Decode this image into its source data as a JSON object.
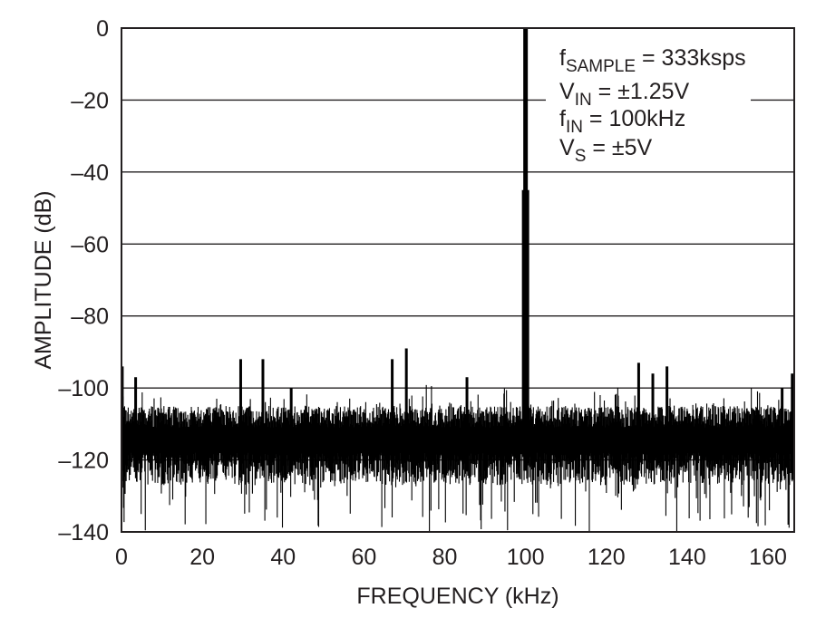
{
  "chart_data": {
    "type": "line",
    "title": "",
    "xlabel": "FREQUENCY (kHz)",
    "ylabel": "AMPLITUDE (dB)",
    "xlim": [
      0,
      166.5
    ],
    "ylim": [
      -140,
      0
    ],
    "xticks": [
      0,
      20,
      40,
      60,
      80,
      100,
      120,
      140,
      160
    ],
    "yticks": [
      0,
      -20,
      -40,
      -60,
      -80,
      -100,
      -120,
      -140
    ],
    "xtick_labels": [
      "0",
      "20",
      "40",
      "60",
      "80",
      "100",
      "120",
      "140",
      "160"
    ],
    "ytick_labels": [
      "0",
      "–20",
      "–40",
      "–60",
      "–80",
      "–100",
      "–120",
      "–140"
    ],
    "grid": "horizontal",
    "noise_floor_db": -113,
    "series": [
      {
        "color": "#000000",
        "peaks": [
          {
            "x": 0.2,
            "y": -94
          },
          {
            "x": 3.5,
            "y": -97
          },
          {
            "x": 29.5,
            "y": -92
          },
          {
            "x": 35,
            "y": -92
          },
          {
            "x": 42,
            "y": -100
          },
          {
            "x": 67,
            "y": -92
          },
          {
            "x": 70.5,
            "y": -89
          },
          {
            "x": 85.5,
            "y": -97
          },
          {
            "x": 100,
            "y": 0
          },
          {
            "x": 128,
            "y": -93
          },
          {
            "x": 131.5,
            "y": -96
          },
          {
            "x": 135,
            "y": -94
          },
          {
            "x": 163.5,
            "y": -100
          },
          {
            "x": 166,
            "y": -96
          }
        ]
      }
    ],
    "annotations": [
      {
        "main": "f",
        "sub": "SAMPLE",
        "rest": " = 333ksps"
      },
      {
        "main": "V",
        "sub": "IN",
        "rest": " = ±1.25V"
      },
      {
        "main": "f",
        "sub": "IN",
        "rest": " = 100kHz"
      },
      {
        "main": "V",
        "sub": "S",
        "rest": " = ±5V"
      }
    ]
  }
}
